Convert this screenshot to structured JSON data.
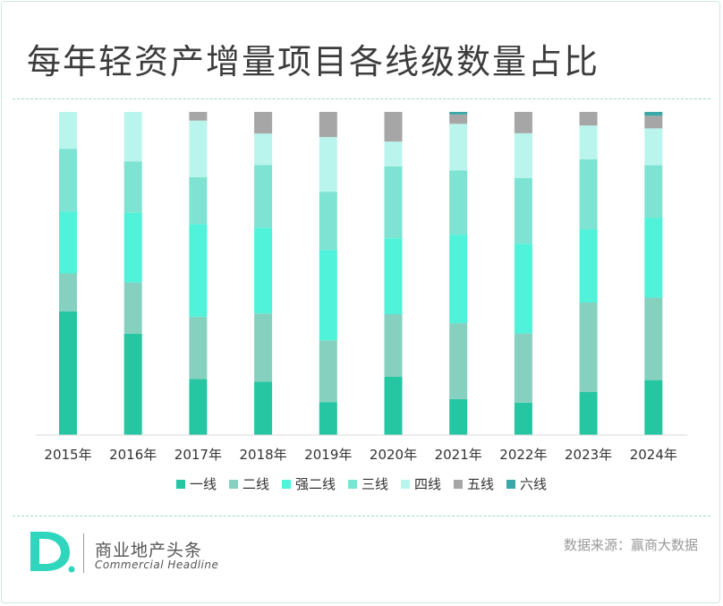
{
  "title": "每年轻资产增量项目各线级数量占比",
  "source": "数据来源：赢商大数据",
  "brand": {
    "name_cn": "商业地产头条",
    "name_en": "Commercial Headline",
    "logo_letter": "D"
  },
  "colors": {
    "一线": "#26c6a2",
    "二线": "#86d0c0",
    "强二线": "#50f2d9",
    "三线": "#7ee3d2",
    "四线": "#b9f5ec",
    "五线": "#a6a6a6",
    "六线": "#3aa7a9",
    "accent": "#2fd6bd"
  },
  "chart_data": {
    "type": "bar",
    "stacked": true,
    "normalized": true,
    "categories": [
      "2015年",
      "2016年",
      "2017年",
      "2018年",
      "2019年",
      "2020年",
      "2021年",
      "2022年",
      "2023年",
      "2024年"
    ],
    "series": [
      {
        "name": "一线",
        "values": [
          38.3,
          31.3,
          17.3,
          16.5,
          10.2,
          18.0,
          11.1,
          10.0,
          13.3,
          17.0
        ]
      },
      {
        "name": "二线",
        "values": [
          11.7,
          15.9,
          19.3,
          21.1,
          19.1,
          19.4,
          23.5,
          21.4,
          27.7,
          25.5
        ]
      },
      {
        "name": "强二线",
        "values": [
          19.2,
          21.6,
          28.7,
          26.6,
          28.0,
          23.5,
          27.4,
          27.8,
          22.7,
          24.7
        ]
      },
      {
        "name": "三线",
        "values": [
          19.4,
          15.9,
          14.5,
          19.4,
          18.0,
          22.2,
          19.9,
          20.3,
          21.6,
          16.3
        ]
      },
      {
        "name": "四线",
        "values": [
          11.4,
          15.3,
          17.5,
          9.7,
          16.9,
          7.7,
          14.4,
          13.9,
          10.5,
          11.4
        ]
      },
      {
        "name": "五线",
        "values": [
          0,
          0,
          2.7,
          6.7,
          7.8,
          9.2,
          2.9,
          6.6,
          4.2,
          3.9
        ]
      },
      {
        "name": "六线",
        "values": [
          0,
          0,
          0,
          0,
          0,
          0,
          0.8,
          0,
          0,
          1.2
        ]
      }
    ],
    "ylim": [
      0,
      100
    ],
    "legend_position": "bottom",
    "grid": false
  }
}
